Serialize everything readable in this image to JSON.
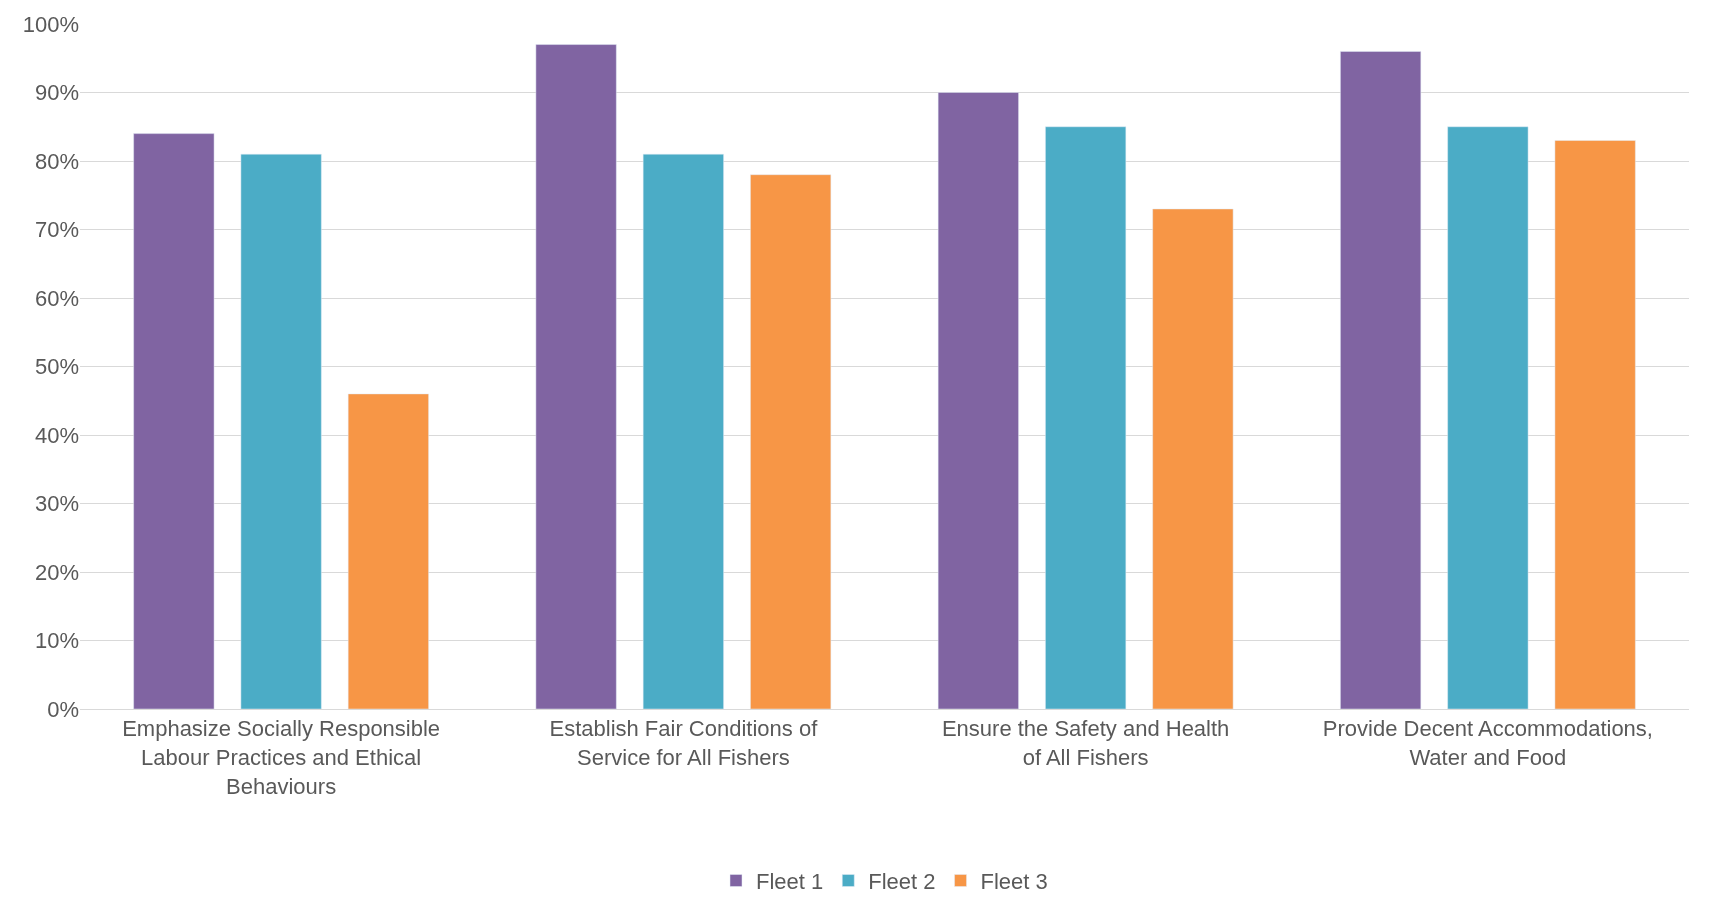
{
  "chart_data": {
    "type": "bar",
    "categories": [
      "Emphasize Socially Responsible Labour Practices and Ethical Behaviours",
      "Establish Fair Conditions of Service for All Fishers",
      "Ensure the Safety and Health of All Fishers",
      "Provide Decent Accommodations, Water and Food"
    ],
    "series": [
      {
        "name": "Fleet 1",
        "color": "#8064a2",
        "values": [
          84,
          97,
          90,
          96
        ]
      },
      {
        "name": "Fleet 2",
        "color": "#4bacc6",
        "values": [
          81,
          81,
          85,
          85
        ]
      },
      {
        "name": "Fleet 3",
        "color": "#f79646",
        "values": [
          46,
          78,
          73,
          83
        ]
      }
    ],
    "ylim": [
      0,
      100
    ],
    "yticks": [
      {
        "value": 0,
        "label": "0%"
      },
      {
        "value": 10,
        "label": "10%"
      },
      {
        "value": 20,
        "label": "20%"
      },
      {
        "value": 30,
        "label": "30%"
      },
      {
        "value": 40,
        "label": "40%"
      },
      {
        "value": 50,
        "label": "50%"
      },
      {
        "value": 60,
        "label": "60%"
      },
      {
        "value": 70,
        "label": "70%"
      },
      {
        "value": 80,
        "label": "80%"
      },
      {
        "value": 90,
        "label": "90%"
      },
      {
        "value": 100,
        "label": "100%"
      }
    ],
    "grid": "y",
    "legend": "bottom"
  }
}
